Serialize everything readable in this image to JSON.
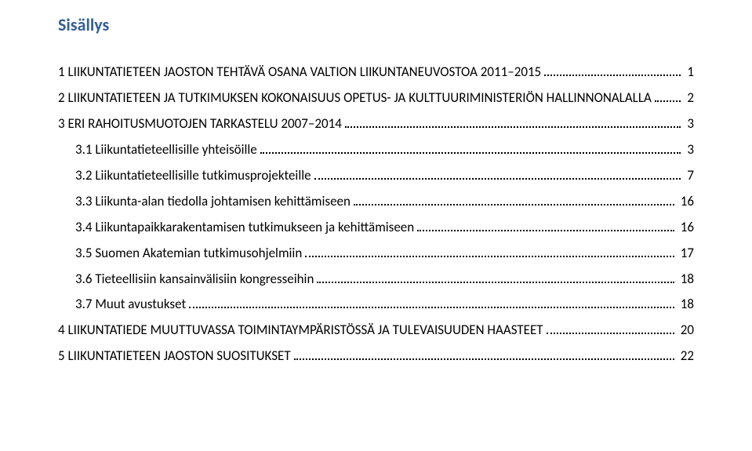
{
  "colors": {
    "title_color": "#365f91",
    "text_color": "#000000",
    "background_color": "#ffffff",
    "dot_color": "#000000"
  },
  "typography": {
    "title_fontsize_pt": 16,
    "body_fontsize_pt": 12.5,
    "title_weight": "bold",
    "body_weight": "normal",
    "font_family": "Calibri"
  },
  "title": "Sisällys",
  "toc": [
    {
      "indent": 0,
      "label": "1 LIIKUNTATIETEEN JAOSTON TEHTÄVÄ OSANA VALTION LIIKUNTANEUVOSTOA 2011–2015",
      "page": "1"
    },
    {
      "indent": 0,
      "label": "2 LIIKUNTATIETEEN JA TUTKIMUKSEN KOKONAISUUS OPETUS- JA KULTTUURIMINISTERIÖN HALLINNONALALLA",
      "page": "2"
    },
    {
      "indent": 0,
      "label": "3 ERI RAHOITUSMUOTOJEN TARKASTELU 2007–2014",
      "page": "3"
    },
    {
      "indent": 1,
      "label": "3.1 Liikuntatieteellisille yhteisöille",
      "page": "3"
    },
    {
      "indent": 1,
      "label": "3.2 Liikuntatieteellisille tutkimusprojekteille",
      "page": "7"
    },
    {
      "indent": 1,
      "label": "3.3 Liikunta-alan tiedolla johtamisen kehittämiseen",
      "page": "16"
    },
    {
      "indent": 1,
      "label": "3.4 Liikuntapaikkarakentamisen tutkimukseen ja kehittämiseen",
      "page": "16"
    },
    {
      "indent": 1,
      "label": "3.5 Suomen Akatemian tutkimusohjelmiin",
      "page": "17"
    },
    {
      "indent": 1,
      "label": "3.6 Tieteellisiin kansainvälisiin kongresseihin",
      "page": "18"
    },
    {
      "indent": 1,
      "label": "3.7 Muut avustukset",
      "page": "18"
    },
    {
      "indent": 0,
      "label": "4 LIIKUNTATIEDE MUUTTUVASSA TOIMINTAYMPÄRISTÖSSÄ JA TULEVAISUUDEN HAASTEET",
      "page": "20"
    },
    {
      "indent": 0,
      "label": "5 LIIKUNTATIETEEN JAOSTON SUOSITUKSET",
      "page": "22"
    }
  ]
}
